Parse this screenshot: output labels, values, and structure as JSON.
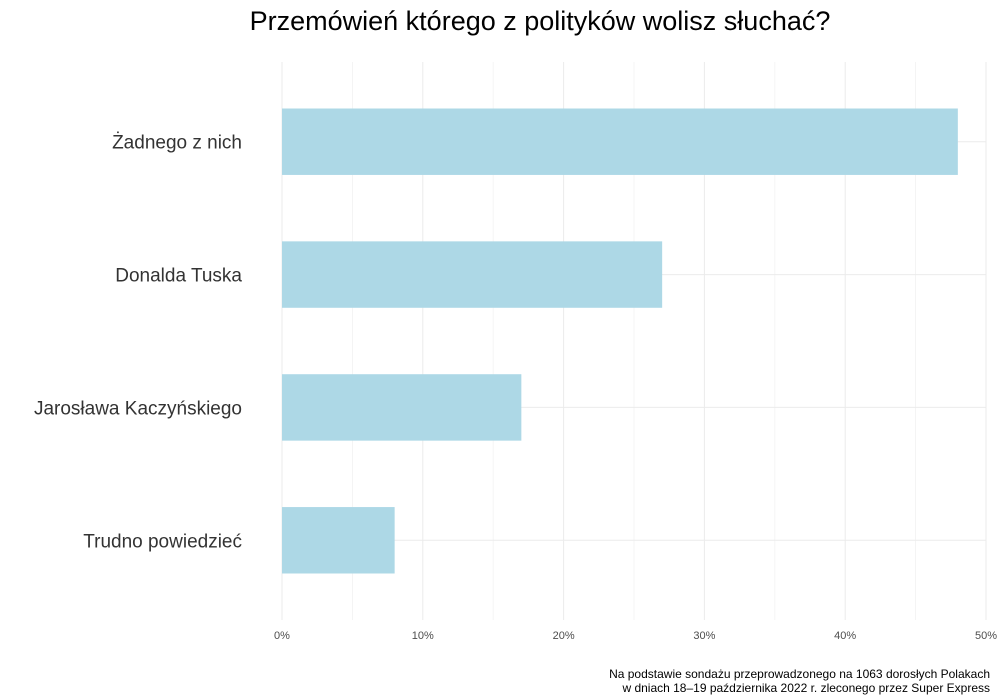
{
  "chart_data": {
    "type": "bar",
    "orientation": "horizontal",
    "title": "Przemówień którego z polityków wolisz słuchać?",
    "xlabel": "",
    "ylabel": "",
    "categories": [
      "Żadnego z nich",
      "Donalda Tuska",
      "Jarosława Kaczyńskiego",
      "Trudno powiedzieć"
    ],
    "values": [
      48,
      27,
      17,
      8
    ],
    "xlim": [
      0,
      50
    ],
    "x_ticks": [
      0,
      10,
      20,
      30,
      40,
      50
    ],
    "x_tick_labels": [
      "0%",
      "10%",
      "20%",
      "30%",
      "40%",
      "50%"
    ],
    "grid": true,
    "bar_color": "#add8e6",
    "caption": [
      "Na podstawie sondażu przeprowadzonego na 1063 dorosłych Polakach",
      "w dniach 18–19 października 2022 r. zleconego przez Super Express"
    ]
  }
}
